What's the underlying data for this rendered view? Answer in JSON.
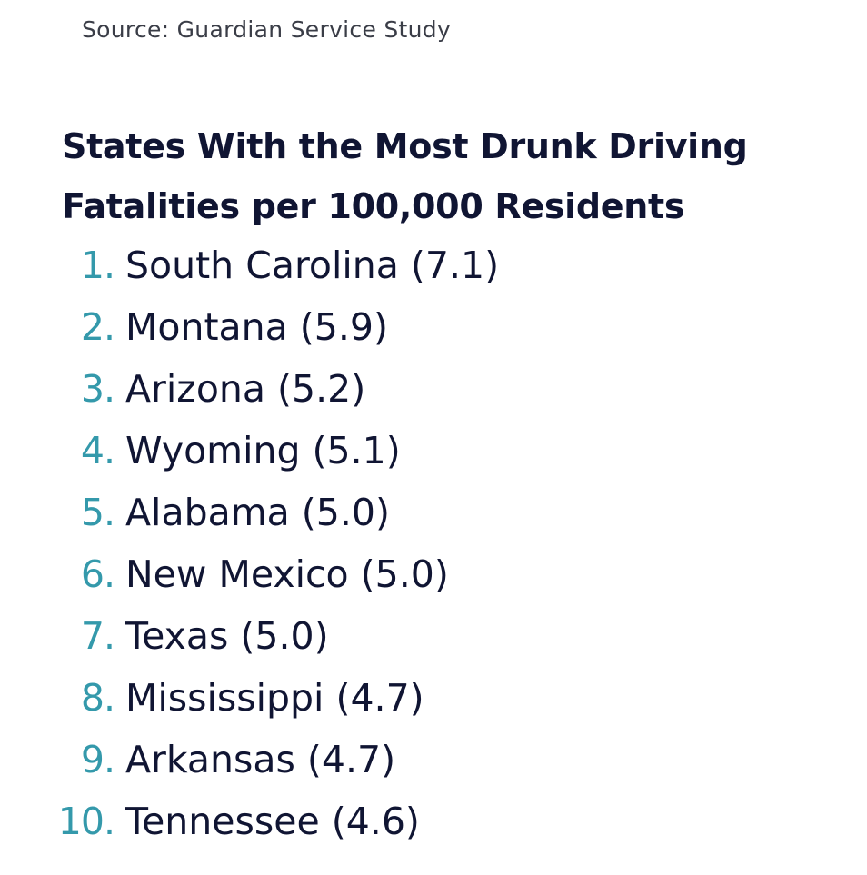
{
  "source": "Source: Guardian Service Study",
  "title": {
    "line1": "States With the Most Drunk Driving",
    "line2": "Fatalities per 100,000 Residents"
  },
  "colors": {
    "rank_number": "#3499ab",
    "text": "#101533",
    "source_text": "#3a3d47",
    "background": "#ffffff"
  },
  "rankings": [
    {
      "rank": "1",
      "text": "South Carolina (7.1)"
    },
    {
      "rank": "2",
      "text": "Montana (5.9)"
    },
    {
      "rank": "3",
      "text": "Arizona (5.2)"
    },
    {
      "rank": "4",
      "text": "Wyoming (5.1)"
    },
    {
      "rank": "5",
      "text": "Alabama (5.0)"
    },
    {
      "rank": "6",
      "text": "New Mexico (5.0)"
    },
    {
      "rank": "7",
      "text": "Texas (5.0)"
    },
    {
      "rank": "8",
      "text": "Mississippi (4.7)"
    },
    {
      "rank": "9",
      "text": "Arkansas (4.7)"
    },
    {
      "rank": "10",
      "text": "Tennessee (4.6)"
    }
  ]
}
